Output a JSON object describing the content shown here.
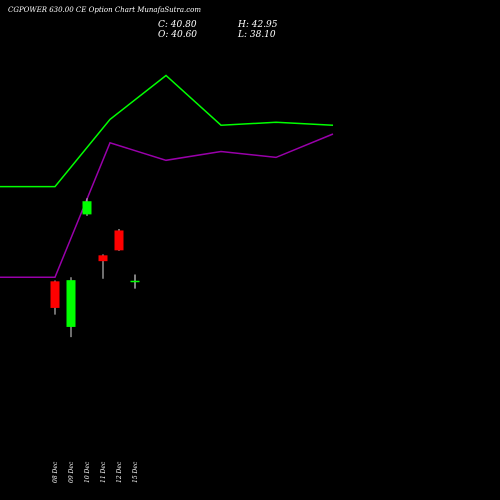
{
  "header": {
    "title": "CGPOWER 630.00  CE Option  Chart MunafaSutra.com",
    "close": "C: 40.80",
    "open": "O: 40.60",
    "high": "H: 42.95",
    "low": "L: 38.10"
  },
  "chart_data": {
    "type": "candlestick",
    "categories": [
      "08 Dec",
      "09 Dec",
      "10 Dec",
      "11 Dec",
      "12 Dec",
      "15 Dec"
    ],
    "candles": [
      {
        "date": "08 Dec",
        "open": 40.6,
        "high": 40.9,
        "low": 29.2,
        "close": 31.5,
        "color": "#ff0000"
      },
      {
        "date": "09 Dec",
        "open": 25.0,
        "high": 42.0,
        "low": 21.5,
        "close": 41.0,
        "color": "#00ff00"
      },
      {
        "date": "10 Dec",
        "open": 68.0,
        "high": 69.0,
        "low": 63.0,
        "close": 63.5,
        "color": "#00ff00"
      },
      {
        "date": "11 Dec",
        "open": 49.5,
        "high": 49.8,
        "low": 41.5,
        "close": 47.5,
        "color": "#ff0000"
      },
      {
        "date": "12 Dec",
        "open": 58.0,
        "high": 58.5,
        "low": 51.0,
        "close": 51.2,
        "color": "#ff0000"
      },
      {
        "date": "15 Dec",
        "open": 40.6,
        "high": 42.95,
        "low": 38.1,
        "close": 40.8,
        "color": "#ffffff"
      }
    ],
    "overlays": [
      {
        "color": "#00ff00",
        "values": [
          73,
          73,
          96,
          111,
          94,
          95,
          94
        ]
      },
      {
        "color": "#9900aa",
        "values": [
          42,
          42,
          88,
          82,
          85,
          83,
          91
        ]
      }
    ],
    "ylim": [
      0,
      130
    ]
  }
}
